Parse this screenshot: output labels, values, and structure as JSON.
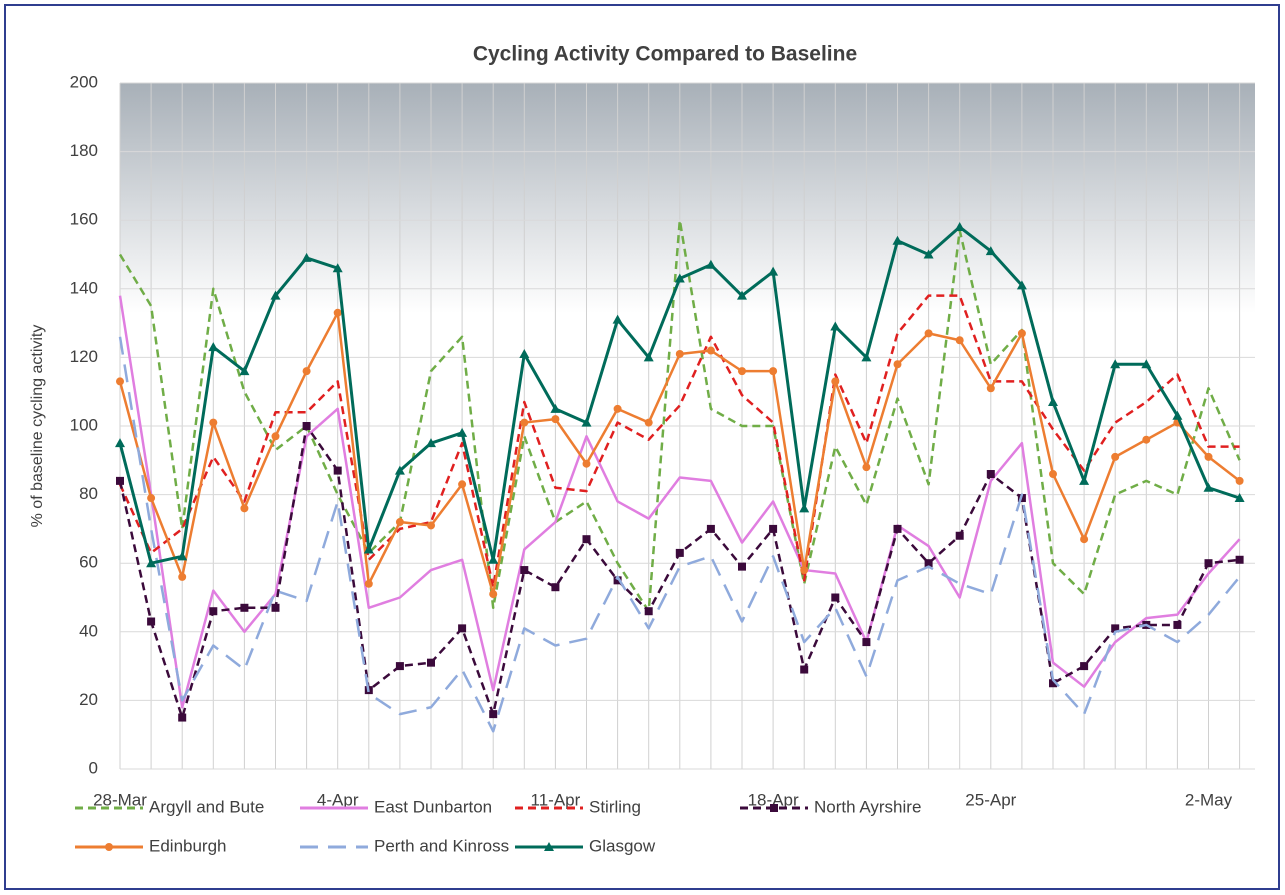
{
  "chart_data": {
    "type": "line",
    "title": "Cycling Activity Compared to Baseline",
    "y_label": "% of baseline cycling activity",
    "categories": [
      "28-Mar",
      null,
      null,
      null,
      null,
      null,
      null,
      "4-Apr",
      null,
      null,
      null,
      null,
      null,
      null,
      "11-Apr",
      null,
      null,
      null,
      null,
      null,
      null,
      "18-Apr",
      null,
      null,
      null,
      null,
      null,
      null,
      "25-Apr",
      null,
      null,
      null,
      null,
      null,
      null,
      "2-May",
      null
    ],
    "ylim": [
      0,
      200
    ],
    "yticks": [
      0,
      20,
      40,
      60,
      80,
      100,
      120,
      140,
      160,
      180,
      200
    ],
    "grid": true,
    "legend": "bottom",
    "series": [
      {
        "name": "Argyll and Bute",
        "color": "#70ad47",
        "line_style": "dashed",
        "marker": "none",
        "values": [
          150,
          135,
          70,
          140,
          110,
          93,
          100,
          80,
          63,
          72,
          116,
          126,
          47,
          97,
          72,
          78,
          60,
          46,
          160,
          105,
          100,
          100,
          54,
          94,
          77,
          108,
          83,
          157,
          118,
          128,
          60,
          51,
          80,
          84,
          80,
          111,
          90
        ]
      },
      {
        "name": "East Dunbarton",
        "color": "#e07ee0",
        "line_style": "solid",
        "marker": "none",
        "values": [
          138,
          80,
          18,
          52,
          40,
          51,
          97,
          105,
          47,
          50,
          58,
          61,
          23,
          64,
          72,
          97,
          78,
          73,
          85,
          84,
          66,
          78,
          58,
          57,
          37,
          71,
          65,
          50,
          84,
          95,
          31,
          24,
          37,
          44,
          45,
          57,
          67
        ]
      },
      {
        "name": "Stirling",
        "color": "#e02020",
        "line_style": "dashed",
        "marker": "none",
        "values": [
          83,
          63,
          70,
          91,
          78,
          104,
          104,
          113,
          61,
          70,
          72,
          95,
          53,
          107,
          82,
          81,
          101,
          96,
          106,
          126,
          109,
          101,
          55,
          115,
          95,
          127,
          138,
          138,
          113,
          113,
          99,
          87,
          101,
          107,
          115,
          94,
          94
        ]
      },
      {
        "name": "North Ayrshire",
        "color": "#3b0a3b",
        "line_style": "dashed",
        "marker": "square",
        "values": [
          84,
          43,
          15,
          46,
          47,
          47,
          100,
          87,
          23,
          30,
          31,
          41,
          16,
          58,
          53,
          67,
          55,
          46,
          63,
          70,
          59,
          70,
          29,
          50,
          37,
          70,
          60,
          68,
          86,
          79,
          25,
          30,
          41,
          42,
          42,
          60,
          61
        ]
      },
      {
        "name": "Edinburgh",
        "color": "#ed7d31",
        "line_style": "solid",
        "marker": "circle",
        "values": [
          113,
          79,
          56,
          101,
          76,
          97,
          116,
          133,
          54,
          72,
          71,
          83,
          51,
          101,
          102,
          89,
          105,
          101,
          121,
          122,
          116,
          116,
          58,
          113,
          88,
          118,
          127,
          125,
          111,
          127,
          86,
          67,
          91,
          96,
          101,
          91,
          84
        ]
      },
      {
        "name": "Perth and Kinross",
        "color": "#8faadc",
        "line_style": "long-dash",
        "marker": "none",
        "values": [
          126,
          70,
          20,
          36,
          29,
          52,
          49,
          78,
          22,
          16,
          18,
          29,
          11,
          41,
          36,
          38,
          56,
          41,
          59,
          62,
          43,
          62,
          37,
          47,
          27,
          55,
          59,
          54,
          51,
          80,
          26,
          16,
          40,
          42,
          37,
          45,
          56
        ]
      },
      {
        "name": "Glasgow",
        "color": "#006b5a",
        "line_style": "solid",
        "marker": "triangle",
        "values": [
          95,
          60,
          62,
          123,
          116,
          138,
          149,
          146,
          64,
          87,
          95,
          98,
          61,
          121,
          105,
          101,
          131,
          120,
          143,
          147,
          138,
          145,
          76,
          129,
          120,
          154,
          150,
          158,
          151,
          141,
          107,
          84,
          118,
          118,
          103,
          82,
          79
        ]
      }
    ]
  }
}
